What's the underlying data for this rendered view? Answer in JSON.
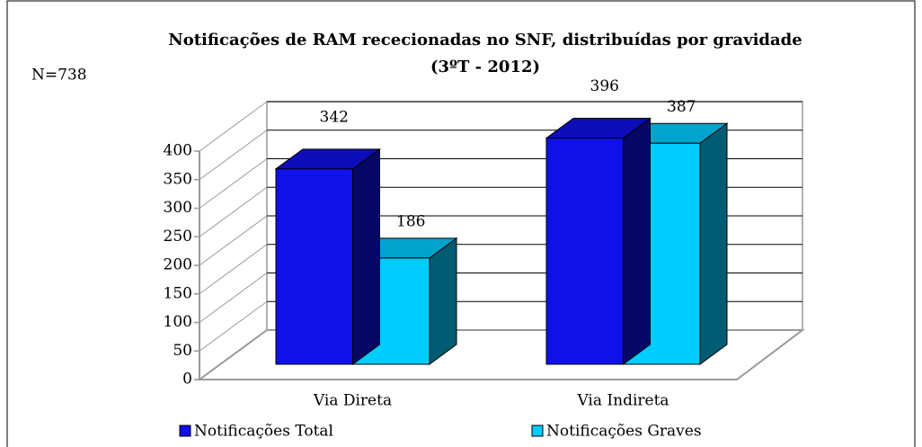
{
  "chart_data": {
    "type": "bar3d",
    "title": [
      "Notificações de RAM rececionadas no SNF, distribuídas por gravidade",
      "(3ºT - 2012)"
    ],
    "annotation": "N=738",
    "categories": [
      "Via Direta",
      "Via Indireta"
    ],
    "series": [
      {
        "name": "Notificações Total",
        "color": "#1010e8",
        "values": [
          342,
          396
        ]
      },
      {
        "name": "Notificações Graves",
        "color": "#00ccff",
        "values": [
          186,
          387
        ]
      }
    ],
    "ylim": [
      0,
      400
    ],
    "yticks": [
      0,
      50,
      100,
      150,
      200,
      250,
      300,
      350,
      400
    ],
    "grid": true,
    "legend": "bottom"
  }
}
